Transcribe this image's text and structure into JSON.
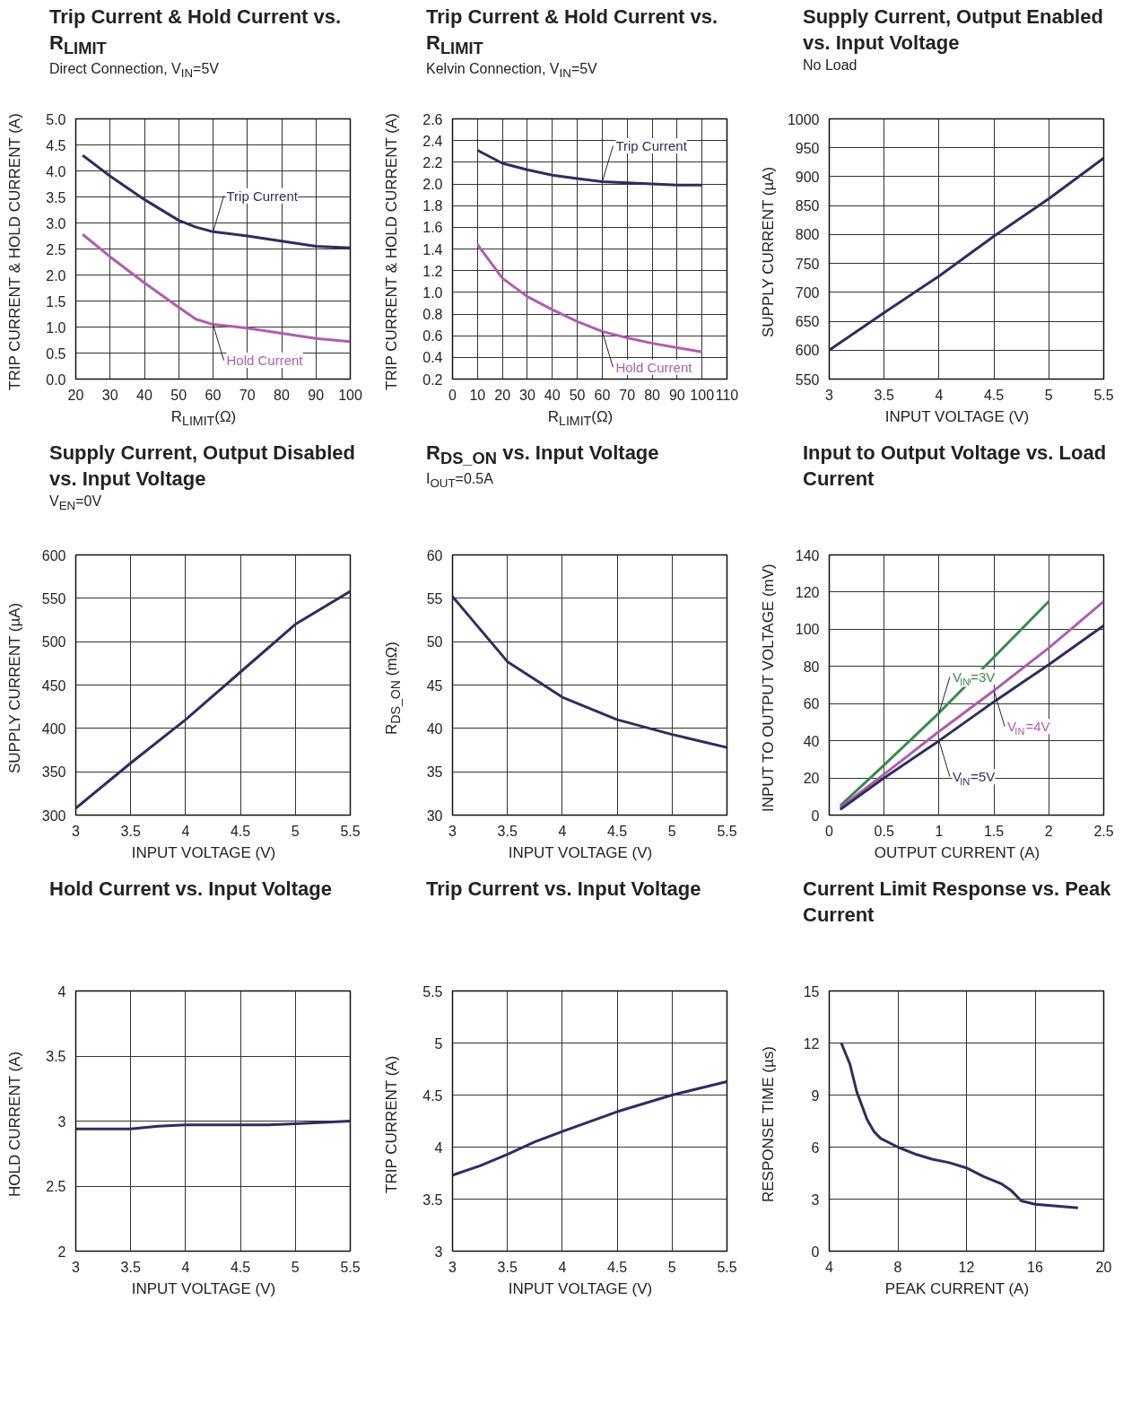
{
  "chart_data": [
    {
      "type": "line",
      "title": "Trip Current & Hold Current vs. R$_{LIMIT}$",
      "subtitle": "Direct Connection, V$_{IN}$=5V",
      "xlabel": "R$_{LIMIT}$(Ω)",
      "ylabel": "TRIP CURRENT & HOLD CURRENT (A)",
      "xlim": [
        20,
        100
      ],
      "xticks": [
        20,
        30,
        40,
        50,
        60,
        70,
        80,
        90,
        100
      ],
      "ylim": [
        0,
        5
      ],
      "yticks": [
        {
          "value": 0,
          "label": "0.0"
        },
        0.5,
        {
          "value": 1,
          "label": "1.0"
        },
        1.5,
        {
          "value": 2,
          "label": "2.0"
        },
        2.5,
        {
          "value": 3,
          "label": "3.0"
        },
        3.5,
        {
          "value": 4,
          "label": "4.0"
        },
        4.5,
        {
          "value": 5,
          "label": "5.0"
        }
      ],
      "grid": true,
      "x": [
        22,
        30,
        40,
        50,
        55,
        60,
        70,
        80,
        90,
        100
      ],
      "series": [
        {
          "name": "Trip Current",
          "color": "#2e2d5f",
          "values": [
            4.3,
            3.9,
            3.45,
            3.05,
            2.92,
            2.83,
            2.75,
            2.65,
            2.55,
            2.52
          ]
        },
        {
          "name": "Hold Current",
          "color": "#b05cb0",
          "values": [
            2.78,
            2.35,
            1.85,
            1.38,
            1.15,
            1.05,
            0.98,
            0.88,
            0.78,
            0.72
          ]
        }
      ]
    },
    {
      "type": "line",
      "title": "Trip Current & Hold Current vs. R$_{LIMIT}$",
      "subtitle": "Kelvin Connection, V$_{IN}$=5V",
      "xlabel": "R$_{LIMIT}$(Ω)",
      "ylabel": "TRIP CURRENT & HOLD CURRENT (A)",
      "xlim": [
        0,
        110
      ],
      "xticks": [
        0,
        10,
        20,
        30,
        40,
        50,
        60,
        70,
        80,
        90,
        100,
        110
      ],
      "ylim": [
        0.2,
        2.6
      ],
      "yticks": [
        0.2,
        0.4,
        0.6,
        0.8,
        {
          "value": 1,
          "label": "1.0"
        },
        1.2,
        1.4,
        1.6,
        1.8,
        {
          "value": 2,
          "label": "2.0"
        },
        2.2,
        2.4,
        2.6
      ],
      "grid": true,
      "x": [
        10,
        20,
        30,
        40,
        50,
        60,
        70,
        80,
        90,
        100
      ],
      "series": [
        {
          "name": "Trip Current",
          "color": "#2e2d5f",
          "values": [
            2.31,
            2.19,
            2.13,
            2.08,
            2.05,
            2.02,
            2.01,
            2.0,
            1.99,
            1.99
          ]
        },
        {
          "name": "Hold Current",
          "color": "#b05cb0",
          "values": [
            1.44,
            1.13,
            0.96,
            0.84,
            0.73,
            0.64,
            0.58,
            0.53,
            0.49,
            0.45
          ]
        }
      ]
    },
    {
      "type": "line",
      "title": "Supply Current, Output Enabled vs. Input Voltage",
      "subtitle": "No Load",
      "xlabel": "INPUT VOLTAGE (V)",
      "ylabel": "SUPPLY CURRENT (µA)",
      "xlim": [
        3,
        5.5
      ],
      "xticks": [
        3,
        3.5,
        4,
        4.5,
        5,
        5.5
      ],
      "ylim": [
        550,
        1000
      ],
      "yticks": [
        550,
        600,
        650,
        700,
        750,
        800,
        850,
        900,
        950,
        1000
      ],
      "grid": true,
      "x": [
        3,
        3.5,
        4,
        4.5,
        5,
        5.5
      ],
      "series": [
        {
          "color": "#2e2d5f",
          "values": [
            600,
            665,
            728,
            797,
            862,
            932
          ]
        }
      ]
    },
    {
      "type": "line",
      "title": "Supply Current, Output Disabled vs. Input Voltage",
      "subtitle": "V$_{EN}$=0V",
      "xlabel": "INPUT VOLTAGE (V)",
      "ylabel": "SUPPLY CURRENT (µA)",
      "xlim": [
        3,
        5.5
      ],
      "xticks": [
        3,
        3.5,
        4,
        4.5,
        5,
        5.5
      ],
      "ylim": [
        300,
        600
      ],
      "yticks": [
        300,
        350,
        400,
        450,
        500,
        550,
        600
      ],
      "grid": true,
      "x": [
        3,
        3.5,
        4,
        4.5,
        5,
        5.5
      ],
      "series": [
        {
          "color": "#2e2d5f",
          "values": [
            308,
            360,
            410,
            465,
            520,
            558
          ]
        }
      ]
    },
    {
      "type": "line",
      "title": "R$_{DS_ON}$ vs. Input Voltage",
      "subtitle": "I$_{OUT}$=0.5A",
      "xlabel": "INPUT VOLTAGE (V)",
      "ylabel": "R$_{DS_ON}$ (mΩ)",
      "xlim": [
        3,
        5.5
      ],
      "xticks": [
        3,
        3.5,
        4,
        4.5,
        5,
        5.5
      ],
      "ylim": [
        30,
        60
      ],
      "yticks": [
        30,
        35,
        40,
        45,
        50,
        55,
        60
      ],
      "grid": true,
      "x": [
        3,
        3.5,
        4,
        4.5,
        5,
        5.5
      ],
      "series": [
        {
          "color": "#2e2d5f",
          "values": [
            55.2,
            47.7,
            43.6,
            41.0,
            39.3,
            37.8
          ]
        }
      ]
    },
    {
      "type": "line",
      "title": "Input to Output Voltage vs. Load Current",
      "xlabel": "OUTPUT CURRENT (A)",
      "ylabel": "INPUT TO OUTPUT VOLTAGE (mV)",
      "xlim": [
        0,
        2.5
      ],
      "xticks": [
        0,
        0.5,
        1,
        1.5,
        2,
        2.5
      ],
      "ylim": [
        0,
        140
      ],
      "yticks": [
        0,
        20,
        40,
        60,
        80,
        100,
        120,
        140
      ],
      "grid": true,
      "series": [
        {
          "name": "V$_{IN}$=3V",
          "color": "#3a8a4a",
          "x": [
            0.1,
            0.5,
            1,
            1.5,
            2
          ],
          "values": [
            5,
            27,
            55,
            85,
            115
          ]
        },
        {
          "name": "V$_{IN}$=4V",
          "color": "#b05cb0",
          "x": [
            0.1,
            0.5,
            1,
            1.5,
            2,
            2.5
          ],
          "values": [
            4,
            22,
            45,
            67,
            90,
            115
          ]
        },
        {
          "name": "V$_{IN}$=5V",
          "color": "#2e2d5f",
          "x": [
            0.1,
            0.5,
            1,
            1.5,
            2,
            2.5
          ],
          "values": [
            3,
            20,
            40,
            61,
            81,
            102
          ]
        }
      ]
    },
    {
      "type": "line",
      "title": "Hold Current vs. Input Voltage",
      "xlabel": "INPUT VOLTAGE (V)",
      "ylabel": "HOLD CURRENT (A)",
      "xlim": [
        3,
        5.5
      ],
      "xticks": [
        3,
        3.5,
        4,
        4.5,
        5,
        5.5
      ],
      "ylim": [
        2,
        4
      ],
      "yticks": [
        2,
        2.5,
        3,
        3.5,
        4
      ],
      "grid": true,
      "x": [
        3,
        3.5,
        3.75,
        4,
        4.75,
        5,
        5.5
      ],
      "series": [
        {
          "color": "#2e2d5f",
          "values": [
            2.94,
            2.94,
            2.96,
            2.97,
            2.97,
            2.98,
            3.0
          ]
        }
      ]
    },
    {
      "type": "line",
      "title": "Trip Current vs. Input Voltage",
      "xlabel": "INPUT VOLTAGE (V)",
      "ylabel": "TRIP CURRENT (A)",
      "xlim": [
        3,
        5.5
      ],
      "xticks": [
        3,
        3.5,
        4,
        4.5,
        5,
        5.5
      ],
      "ylim": [
        3,
        5.5
      ],
      "yticks": [
        3,
        3.5,
        4,
        4.5,
        5,
        5.5
      ],
      "grid": true,
      "x": [
        3,
        3.25,
        3.5,
        3.75,
        4,
        4.5,
        5,
        5.5
      ],
      "series": [
        {
          "color": "#2e2d5f",
          "values": [
            3.73,
            3.82,
            3.93,
            4.05,
            4.15,
            4.34,
            4.5,
            4.63
          ]
        }
      ]
    },
    {
      "type": "line",
      "title": "Current Limit Response vs. Peak Current",
      "xlabel": "PEAK CURRENT (A)",
      "ylabel": "RESPONSE TIME (µs)",
      "xlim": [
        4,
        20
      ],
      "xticks": [
        4,
        8,
        12,
        16,
        20
      ],
      "ylim": [
        0,
        15
      ],
      "yticks": [
        0,
        3,
        6,
        9,
        12,
        15
      ],
      "grid": true,
      "x": [
        4.7,
        5.2,
        5.6,
        6.2,
        6.6,
        7,
        8,
        9,
        10,
        11,
        12,
        13,
        14,
        14.6,
        15.2,
        16,
        18.5
      ],
      "series": [
        {
          "color": "#2e2d5f",
          "values": [
            12,
            10.8,
            9.2,
            7.6,
            6.9,
            6.5,
            6.0,
            5.6,
            5.3,
            5.1,
            4.8,
            4.3,
            3.9,
            3.5,
            2.9,
            2.7,
            2.5
          ]
        }
      ]
    }
  ]
}
